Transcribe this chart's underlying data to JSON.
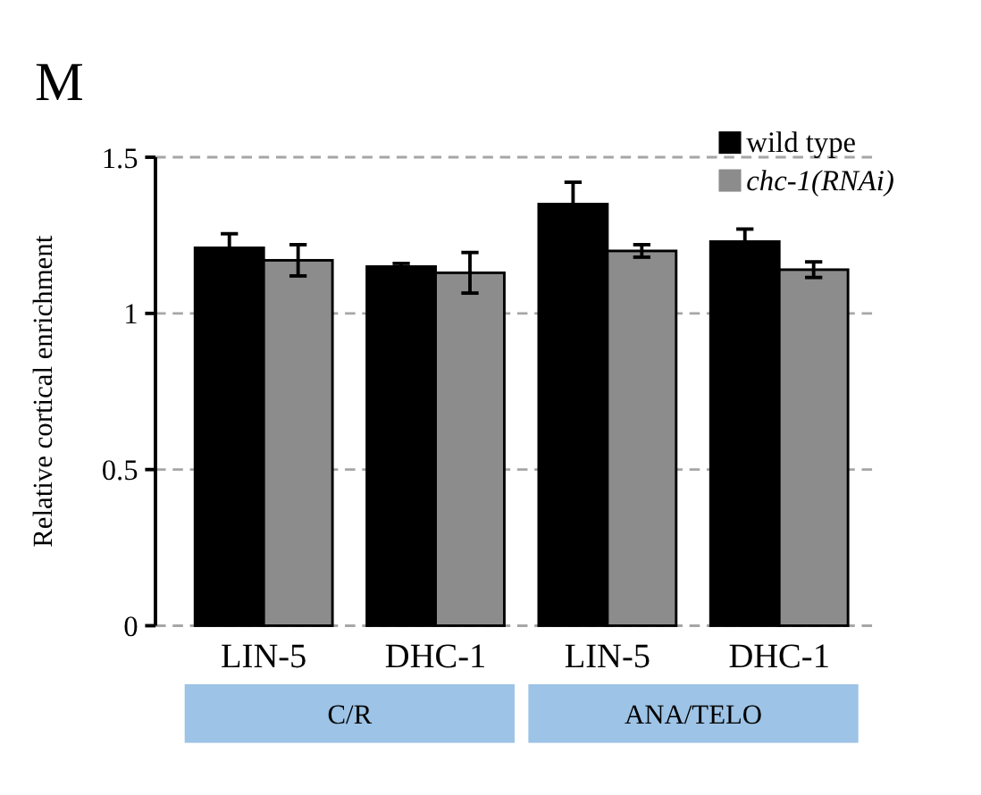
{
  "chart_data": {
    "type": "bar",
    "title": "M",
    "ylabel": "Relative cortical enrichment",
    "categories": [
      "LIN-5",
      "DHC-1",
      "LIN-5",
      "DHC-1"
    ],
    "series": [
      {
        "name": "wild type",
        "color": "#000000",
        "values": [
          1.21,
          1.15,
          1.35,
          1.23
        ],
        "errors": [
          0.045,
          0.01,
          0.07,
          0.04
        ]
      },
      {
        "name": "chc-1(RNAi)",
        "color": "#8c8c8c",
        "values": [
          1.17,
          1.13,
          1.2,
          1.14
        ],
        "errors": [
          0.05,
          0.065,
          0.02,
          0.025
        ]
      }
    ],
    "ylim": [
      0,
      1.5
    ],
    "yticks": [
      0,
      {
        "value": 0.5,
        "label": "0.5"
      },
      1,
      {
        "value": 1.5,
        "label": "1.5"
      }
    ],
    "grid": "y",
    "legend": "top right",
    "annotations": [
      "C/R",
      "ANA/TELO"
    ]
  }
}
